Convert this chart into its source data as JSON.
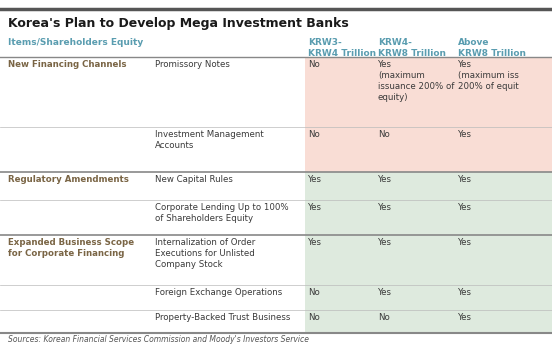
{
  "title": "Korea's Plan to Develop Mega Investment Banks",
  "source": "Sources: Korean Financial Services Commission and Moody's Investors Service",
  "rows": [
    {
      "category": "New Financing Channels",
      "item": "Promissory Notes",
      "col1": "No",
      "col2": "Yes\n(maximum\nissuance 200% of\nequity)",
      "col3": "Yes\n(maximum iss\n200% of equit",
      "bg": "pink"
    },
    {
      "category": "",
      "item": "Investment Management\nAccounts",
      "col1": "No",
      "col2": "No",
      "col3": "Yes",
      "bg": "pink"
    },
    {
      "category": "Regulatory Amendments",
      "item": "New Capital Rules",
      "col1": "Yes",
      "col2": "Yes",
      "col3": "Yes",
      "bg": "green"
    },
    {
      "category": "",
      "item": "Corporate Lending Up to 100%\nof Shareholders Equity",
      "col1": "Yes",
      "col2": "Yes",
      "col3": "Yes",
      "bg": "green"
    },
    {
      "category": "Expanded Business Scope\nfor Corporate Financing",
      "item": "Internalization of Order\nExecutions for Unlisted\nCompany Stock",
      "col1": "Yes",
      "col2": "Yes",
      "col3": "Yes",
      "bg": "green"
    },
    {
      "category": "",
      "item": "Foreign Exchange Operations",
      "col1": "No",
      "col2": "Yes",
      "col3": "Yes",
      "bg": "green"
    },
    {
      "category": "",
      "item": "Property-Backed Trust Business",
      "col1": "No",
      "col2": "No",
      "col3": "Yes",
      "bg": "green"
    }
  ],
  "col_headers": [
    "KRW3-\nKRW4 Trillion",
    "KRW4-\nKRW8 Trillion",
    "Above\nKRW8 Trillion"
  ],
  "colors": {
    "title": "#1a1a1a",
    "header_text": "#5a9db0",
    "category_text": "#7a6545",
    "item_text": "#3a3a3a",
    "cell_text": "#3a3a3a",
    "pink_bg": "#f9ddd5",
    "green_bg": "#deeade",
    "divider_thin": "#bbbbbb",
    "divider_thick": "#888888",
    "top_bar": "#555555",
    "bottom_bar": "#888888",
    "source_text": "#555555"
  },
  "figsize": [
    5.52,
    3.45
  ],
  "dpi": 100
}
